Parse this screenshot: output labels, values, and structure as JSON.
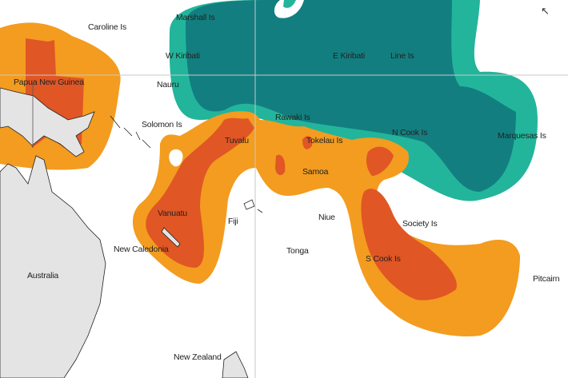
{
  "map": {
    "colors": {
      "orange": "#f39c1f",
      "red_orange": "#e05625",
      "teal_light": "#22b59b",
      "teal_dark": "#137e7f",
      "land": "#e4e4e4",
      "grid": "#c8c8c8"
    },
    "labels": {
      "marshall": "Marshall Is",
      "caroline": "Caroline Is",
      "w_kiribati": "W Kiribati",
      "e_kiribati": "E Kiribati",
      "line": "Line Is",
      "png": "Papua New Guinea",
      "nauru": "Nauru",
      "rawaki": "Rawaki Is",
      "solomon": "Solomon Is",
      "tuvalu": "Tuvalu",
      "tokelau": "Tokelau Is",
      "ncook": "N Cook Is",
      "marquesas": "Marquesas Is",
      "samoa": "Samoa",
      "vanuatu": "Vanuatu",
      "fiji": "Fiji",
      "niue": "Niue",
      "society": "Society Is",
      "newcal": "New Caledonia",
      "tonga": "Tonga",
      "scook": "S Cook Is",
      "pitcairn": "Pitcairn",
      "australia": "Australia",
      "nz": "New Zealand"
    },
    "cursor_icon": "mouse-pointer-icon"
  }
}
